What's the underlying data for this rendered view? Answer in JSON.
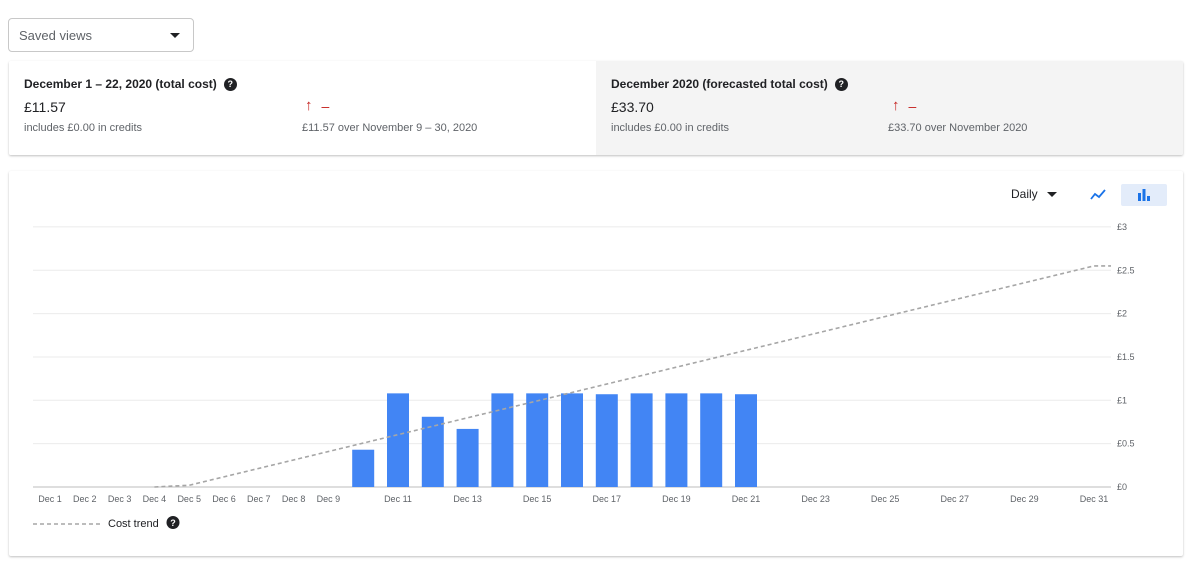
{
  "saved_views": {
    "label": "Saved views"
  },
  "summary": {
    "total": {
      "title": "December 1 – 22, 2020 (total cost)",
      "amount": "£11.57",
      "credits": "includes £0.00 in credits",
      "change": "–",
      "comparison": "£11.57 over November 9 – 30, 2020"
    },
    "forecast": {
      "title": "December 2020 (forecasted total cost)",
      "amount": "£33.70",
      "credits": "includes £0.00 in credits",
      "change": "–",
      "comparison": "£33.70 over November 2020"
    }
  },
  "controls": {
    "granularity": "Daily",
    "line_chart_icon": "line-chart-icon",
    "bar_chart_icon": "bar-chart-icon"
  },
  "colors": {
    "bar": "#4285f4",
    "trend": "#a6a6a6",
    "increase": "#c5221f",
    "accent": "#1a73e8"
  },
  "chart_data": {
    "type": "bar",
    "categories": [
      "Dec 1",
      "Dec 2",
      "Dec 3",
      "Dec 4",
      "Dec 5",
      "Dec 6",
      "Dec 7",
      "Dec 8",
      "Dec 9",
      "Dec 10",
      "Dec 11",
      "Dec 12",
      "Dec 13",
      "Dec 14",
      "Dec 15",
      "Dec 16",
      "Dec 17",
      "Dec 18",
      "Dec 19",
      "Dec 20",
      "Dec 21",
      "Dec 22",
      "Dec 23",
      "Dec 24",
      "Dec 25",
      "Dec 26",
      "Dec 27",
      "Dec 28",
      "Dec 29",
      "Dec 30",
      "Dec 31"
    ],
    "tick_labels": [
      "Dec 1",
      "Dec 2",
      "Dec 3",
      "Dec 4",
      "Dec 5",
      "Dec 6",
      "Dec 7",
      "Dec 8",
      "Dec 9",
      "",
      "Dec 11",
      "",
      "Dec 13",
      "",
      "Dec 15",
      "",
      "Dec 17",
      "",
      "Dec 19",
      "",
      "Dec 21",
      "",
      "Dec 23",
      "",
      "Dec 25",
      "",
      "Dec 27",
      "",
      "Dec 29",
      "",
      "Dec 31"
    ],
    "values": [
      0,
      0,
      0,
      0,
      0,
      0,
      0,
      0,
      0,
      0.43,
      1.08,
      0.81,
      0.67,
      1.08,
      1.08,
      1.08,
      1.07,
      1.08,
      1.08,
      1.08,
      1.07,
      null,
      null,
      null,
      null,
      null,
      null,
      null,
      null,
      null,
      null
    ],
    "trend": {
      "name": "Cost trend",
      "points": [
        [
          "Dec 4",
          0
        ],
        [
          "Dec 5",
          0.02
        ],
        [
          "Dec 31",
          2.55
        ]
      ],
      "extends_to_end": true
    },
    "y_ticks": [
      "£0",
      "£0.5",
      "£1",
      "£1.5",
      "£2",
      "£2.5",
      "£3"
    ],
    "ylim": [
      0,
      3
    ],
    "grid": true,
    "legend": "bottom-left"
  }
}
